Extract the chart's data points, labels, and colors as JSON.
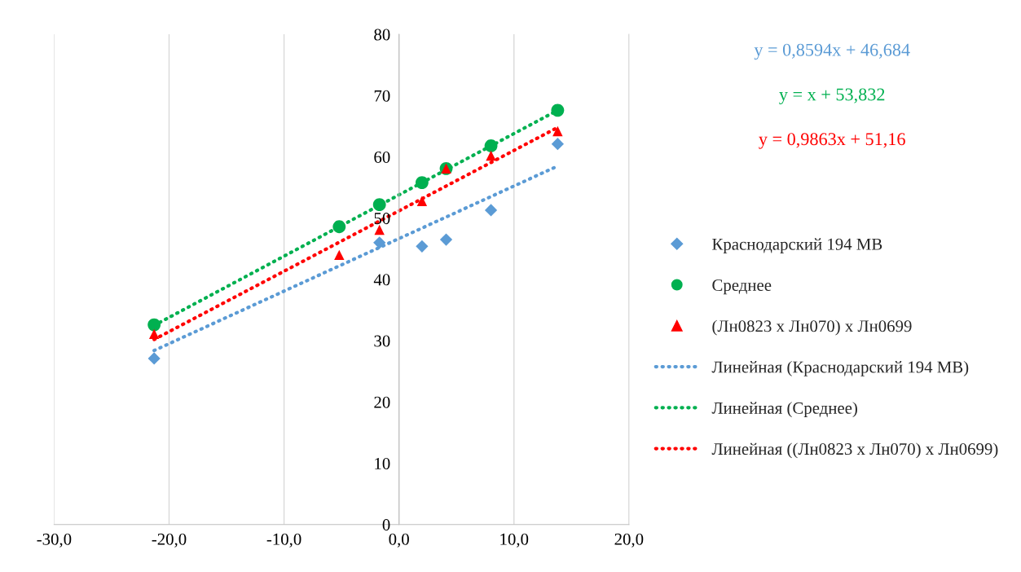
{
  "chart_data": {
    "type": "scatter",
    "series": [
      {
        "name": "Краснодарский 194 МВ",
        "color": "#5b9bd5",
        "marker": "diamond",
        "x": [
          -21.3,
          -1.7,
          2.0,
          4.1,
          8.0,
          13.8
        ],
        "values": [
          27.1,
          46.0,
          45.4,
          46.5,
          51.3,
          62.1
        ]
      },
      {
        "name": "Среднее",
        "color": "#00b050",
        "marker": "circle",
        "x": [
          -21.3,
          -5.2,
          -1.7,
          2.0,
          4.1,
          8.0,
          13.8
        ],
        "values": [
          32.6,
          48.6,
          52.2,
          55.8,
          58.1,
          61.8,
          67.6
        ]
      },
      {
        "name": "(Лн0823 х Лн070) х Лн0699",
        "color": "#ff0000",
        "marker": "triangle",
        "x": [
          -21.3,
          -5.2,
          -1.7,
          2.0,
          4.1,
          8.0,
          13.8
        ],
        "values": [
          31.1,
          44.0,
          48.1,
          52.8,
          58.1,
          60.2,
          64.2
        ]
      },
      {
        "name": "Линейная (Краснодарский 194 МВ)",
        "type": "line",
        "line_style": "dotted",
        "color": "#5b9bd5",
        "x": [
          -21.3,
          13.8
        ],
        "values": [
          28.4,
          58.5
        ]
      },
      {
        "name": "Линейная (Среднее)",
        "type": "line",
        "line_style": "dotted",
        "color": "#00b050",
        "x": [
          -21.3,
          13.8
        ],
        "values": [
          32.5,
          67.6
        ]
      },
      {
        "name": "Линейная ((Лн0823 х Лн070) х Лн0699)",
        "type": "line",
        "line_style": "dotted",
        "color": "#ff0000",
        "x": [
          -21.3,
          13.8
        ],
        "values": [
          30.2,
          64.8
        ]
      }
    ],
    "annotations": [
      "y = 0,8594x + 46,684",
      "y = x + 53,832",
      "y = 0,9863x + 51,16"
    ],
    "xlim": [
      -30,
      20
    ],
    "xticks": [
      {
        "value": -30,
        "label": "-30,0"
      },
      {
        "value": -20,
        "label": "-20,0"
      },
      {
        "value": -10,
        "label": "-10,0"
      },
      {
        "value": 0,
        "label": "0,0"
      },
      {
        "value": 10,
        "label": "10,0"
      },
      {
        "value": 20,
        "label": "20,0"
      }
    ],
    "ylim": [
      0,
      80
    ],
    "yticks": [
      0,
      10,
      20,
      30,
      40,
      50,
      60,
      70,
      80
    ],
    "grid": "x",
    "legend": "right"
  }
}
